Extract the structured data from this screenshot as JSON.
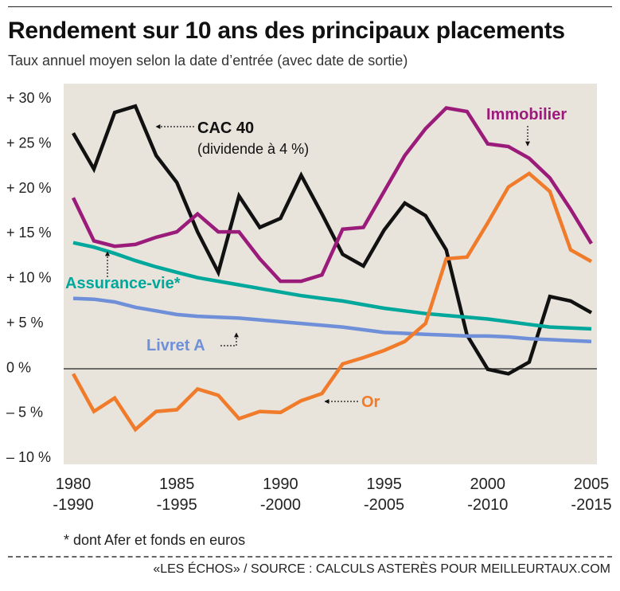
{
  "title": "Rendement sur 10 ans des principaux placements",
  "subtitle": "Taux annuel moyen selon la date d’entrée (avec date de sortie)",
  "footnote": "* dont Afer et fonds en euros",
  "source": "«LES ÉCHOS» / SOURCE : CALCULS ASTERÈS POUR MEILLEURTAUX.COM",
  "chart_data": {
    "type": "line",
    "ylim": [
      -10,
      30
    ],
    "xlim": [
      1980,
      2005
    ],
    "grid": false,
    "y_ticks": [
      {
        "value": 30,
        "label": "+ 30 %"
      },
      {
        "value": 25,
        "label": "+ 25 %"
      },
      {
        "value": 20,
        "label": "+ 20 %"
      },
      {
        "value": 15,
        "label": "+ 15 %"
      },
      {
        "value": 10,
        "label": "+ 10 %"
      },
      {
        "value": 5,
        "label": "+ 5 %"
      },
      {
        "value": 0,
        "label": "0 %"
      },
      {
        "value": -5,
        "label": "– 5 %"
      },
      {
        "value": -10,
        "label": "– 10 %"
      }
    ],
    "x_ticks": [
      {
        "value": 1980,
        "label1": "1980",
        "label2": "-1990"
      },
      {
        "value": 1985,
        "label1": "1985",
        "label2": "-1995"
      },
      {
        "value": 1990,
        "label1": "1990",
        "label2": "-2000"
      },
      {
        "value": 1995,
        "label1": "1995",
        "label2": "-2005"
      },
      {
        "value": 2000,
        "label1": "2000",
        "label2": "-2010"
      },
      {
        "value": 2005,
        "label1": "2005",
        "label2": "-2015"
      }
    ],
    "x": [
      1980,
      1981,
      1982,
      1983,
      1984,
      1985,
      1986,
      1987,
      1988,
      1989,
      1990,
      1991,
      1992,
      1993,
      1994,
      1995,
      1996,
      1997,
      1998,
      1999,
      2000,
      2001,
      2002,
      2003,
      2004,
      2005
    ],
    "series": [
      {
        "name": "CAC 40",
        "sublabel": "(dividende à 4 %)",
        "color": "#111111",
        "values": [
          26,
          22,
          28.3,
          29,
          23.5,
          20.5,
          15,
          10.5,
          19,
          15.5,
          16.5,
          21.3,
          17,
          12.5,
          11.2,
          15.2,
          18.2,
          16.8,
          13,
          3.5,
          -0.3,
          -0.8,
          0.5,
          7.8,
          7.3,
          6
        ]
      },
      {
        "name": "Immobilier",
        "color": "#9b1b7a",
        "values": [
          18.8,
          14,
          13.4,
          13.6,
          14.4,
          15,
          17,
          15,
          15,
          12,
          9.5,
          9.5,
          10.2,
          15.3,
          15.5,
          19.5,
          23.5,
          26.5,
          28.8,
          28.4,
          24.8,
          24.5,
          23.2,
          21,
          17.5,
          13.7
        ]
      },
      {
        "name": "Assurance-vie*",
        "color": "#00a89c",
        "values": [
          13.8,
          13.3,
          12.6,
          11.8,
          11.1,
          10.5,
          9.9,
          9.5,
          9.1,
          8.7,
          8.3,
          7.9,
          7.6,
          7.3,
          6.9,
          6.5,
          6.2,
          5.9,
          5.7,
          5.5,
          5.3,
          5.0,
          4.7,
          4.4,
          4.3,
          4.2
        ]
      },
      {
        "name": "Livret A",
        "color": "#6f8fd8",
        "values": [
          7.6,
          7.5,
          7.2,
          6.6,
          6.2,
          5.8,
          5.6,
          5.5,
          5.4,
          5.2,
          5.0,
          4.8,
          4.6,
          4.4,
          4.1,
          3.8,
          3.7,
          3.6,
          3.5,
          3.4,
          3.4,
          3.3,
          3.1,
          3.0,
          2.9,
          2.8
        ]
      },
      {
        "name": "Or",
        "color": "#f07b2a",
        "values": [
          -0.8,
          -5,
          -3.5,
          -7,
          -5,
          -4.8,
          -2.5,
          -3.2,
          -5.8,
          -5,
          -5.1,
          -3.8,
          -3,
          0.3,
          1,
          1.8,
          2.8,
          4.8,
          12,
          12.2,
          16,
          20,
          21.5,
          19.5,
          13,
          11.7
        ]
      }
    ]
  }
}
